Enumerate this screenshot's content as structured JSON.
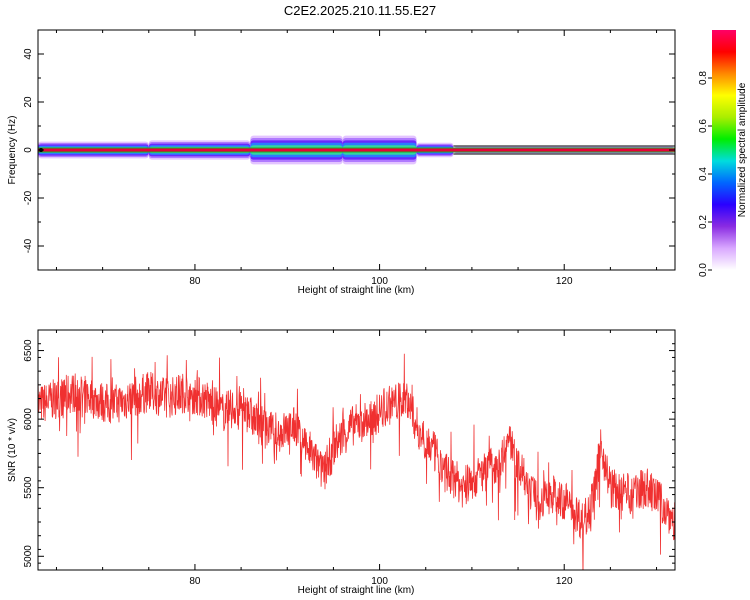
{
  "title": "C2E2.2025.210.11.55.E27",
  "chart_data": [
    {
      "type": "heatmap",
      "xlabel": "Height of straight line (km)",
      "ylabel": "Frequency (Hz)",
      "xlim": [
        63,
        132
      ],
      "ylim": [
        -50,
        50
      ],
      "xticks": [
        80,
        100,
        120
      ],
      "yticks": [
        40,
        20,
        0,
        -20,
        -40
      ],
      "colorbar": {
        "label": "Normalized spectral amplitude",
        "range": [
          0,
          1
        ],
        "ticks": [
          "0.0",
          "0.2",
          "0.4",
          "0.6",
          "0.8"
        ],
        "colors": [
          "#ffffff",
          "#d9a8ff",
          "#8a2be2",
          "#2a00ff",
          "#0066ff",
          "#00dddd",
          "#00ee00",
          "#aaee00",
          "#ffff00",
          "#ff8800",
          "#ff0000",
          "#ff0066"
        ]
      },
      "band": {
        "center_hz": 0,
        "core_color": "#e8003a",
        "segments": [
          {
            "x_start": 63,
            "x_end": 75,
            "spread_hz": 3.5
          },
          {
            "x_start": 75,
            "x_end": 86,
            "spread_hz": 4
          },
          {
            "x_start": 86,
            "x_end": 96,
            "spread_hz": 6
          },
          {
            "x_start": 96,
            "x_end": 104,
            "spread_hz": 6
          },
          {
            "x_start": 104,
            "x_end": 108,
            "spread_hz": 3
          },
          {
            "x_start": 108,
            "x_end": 132,
            "spread_hz": 1.5
          }
        ]
      }
    },
    {
      "type": "line",
      "xlabel": "Height of straight line (km)",
      "ylabel": "SNR (10 * v/v)",
      "xlim": [
        63,
        132
      ],
      "ylim": [
        4900,
        6650
      ],
      "xticks": [
        80,
        100,
        120
      ],
      "yticks": [
        5000,
        5500,
        6000,
        6500
      ],
      "series": [
        {
          "color": "#f03030",
          "x": [
            63,
            65,
            67,
            69,
            71,
            73,
            75,
            77,
            79,
            81,
            83,
            85,
            87,
            89,
            91,
            93,
            94,
            95,
            97,
            99,
            101,
            103,
            104,
            105,
            107,
            109,
            111,
            113,
            114,
            115,
            117,
            119,
            121,
            122,
            123,
            124,
            125,
            127,
            129,
            131,
            132
          ],
          "y": [
            6100,
            6150,
            6200,
            6150,
            6100,
            6150,
            6200,
            6150,
            6200,
            6150,
            6050,
            6100,
            5950,
            5900,
            5950,
            5700,
            5600,
            5800,
            5950,
            6000,
            6100,
            6150,
            5950,
            5850,
            5650,
            5500,
            5600,
            5700,
            5850,
            5650,
            5400,
            5450,
            5350,
            5250,
            5400,
            5800,
            5500,
            5450,
            5500,
            5350,
            5250
          ],
          "noise_amplitude": 300
        }
      ]
    }
  ]
}
